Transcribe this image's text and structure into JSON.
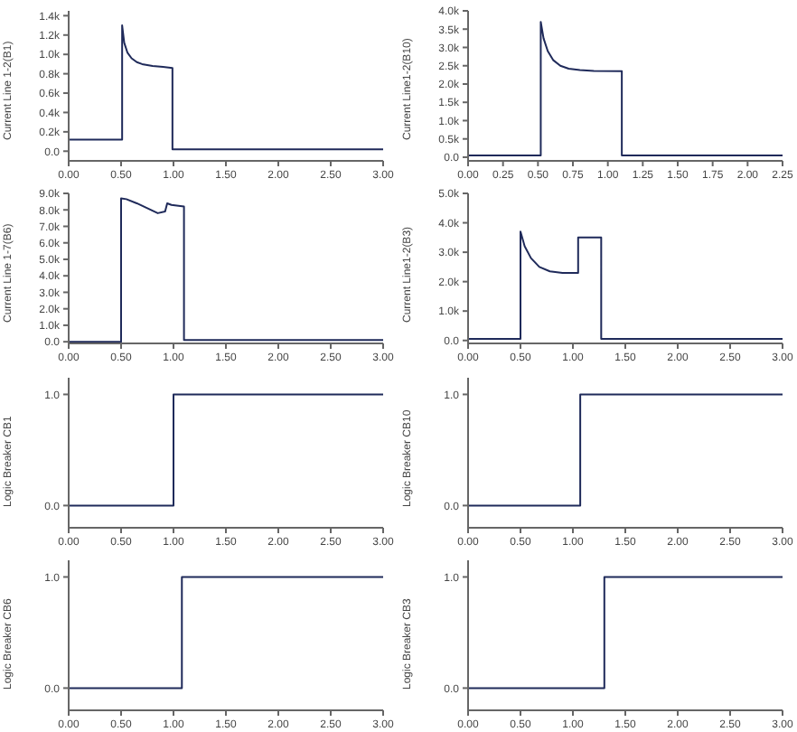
{
  "chart_data": [
    {
      "type": "line",
      "ylabel": "Current Line 1-2(B1)",
      "xlim": [
        0,
        3
      ],
      "xticks": [
        {
          "value": 0,
          "label": "0.00"
        },
        {
          "value": 0.5,
          "label": "0.50"
        },
        {
          "value": 1,
          "label": "1.00"
        },
        {
          "value": 1.5,
          "label": "1.50"
        },
        {
          "value": 2,
          "label": "2.00"
        },
        {
          "value": 2.5,
          "label": "2.50"
        },
        {
          "value": 3,
          "label": "3.00"
        }
      ],
      "ylim": [
        -0.1,
        1.45
      ],
      "yticks": [
        {
          "value": 0,
          "label": "0.0"
        },
        {
          "value": 0.2,
          "label": "0.2k"
        },
        {
          "value": 0.4,
          "label": "0.4k"
        },
        {
          "value": 0.6,
          "label": "0.6k"
        },
        {
          "value": 0.8,
          "label": "0.8k"
        },
        {
          "value": 1,
          "label": "1.0k"
        },
        {
          "value": 1.2,
          "label": "1.2k"
        },
        {
          "value": 1.4,
          "label": "1.4k"
        }
      ],
      "series": [
        {
          "color": "#1f2a5a",
          "x": [
            0,
            0.51,
            0.51,
            0.53,
            0.56,
            0.6,
            0.65,
            0.7,
            0.8,
            0.9,
            0.99,
            0.99,
            3
          ],
          "values": [
            0.12,
            0.12,
            1.3,
            1.12,
            1.02,
            0.96,
            0.92,
            0.9,
            0.88,
            0.87,
            0.86,
            0.02,
            0.02
          ]
        }
      ]
    },
    {
      "type": "line",
      "ylabel": "Current Line1-2(B10)",
      "xlim": [
        0,
        2.25
      ],
      "xticks": [
        {
          "value": 0,
          "label": "0.00"
        },
        {
          "value": 0.25,
          "label": "0.25"
        },
        {
          "value": 0.5,
          "label": "0.50"
        },
        {
          "value": 0.75,
          "label": "0.75"
        },
        {
          "value": 1,
          "label": "1.00"
        },
        {
          "value": 1.25,
          "label": "1.25"
        },
        {
          "value": 1.5,
          "label": "1.50"
        },
        {
          "value": 1.75,
          "label": "1.75"
        },
        {
          "value": 2,
          "label": "2.00"
        },
        {
          "value": 2.25,
          "label": "2.25"
        }
      ],
      "ylim": [
        -0.1,
        4
      ],
      "yticks": [
        {
          "value": 0,
          "label": "0.0"
        },
        {
          "value": 0.5,
          "label": "0.5k"
        },
        {
          "value": 1,
          "label": "1.0k"
        },
        {
          "value": 1.5,
          "label": "1.5k"
        },
        {
          "value": 2,
          "label": "2.0k"
        },
        {
          "value": 2.5,
          "label": "2.5k"
        },
        {
          "value": 3,
          "label": "3.0k"
        },
        {
          "value": 3.5,
          "label": "3.5k"
        },
        {
          "value": 4,
          "label": "4.0k"
        }
      ],
      "series": [
        {
          "color": "#1f2a5a",
          "x": [
            0,
            0.52,
            0.52,
            0.54,
            0.57,
            0.61,
            0.66,
            0.72,
            0.8,
            0.9,
            1.1,
            1.1,
            2.25
          ],
          "values": [
            0.05,
            0.05,
            3.7,
            3.25,
            2.9,
            2.65,
            2.5,
            2.42,
            2.38,
            2.36,
            2.35,
            0.05,
            0.05
          ]
        }
      ]
    },
    {
      "type": "line",
      "ylabel": "Current Line 1-7(B6)",
      "xlim": [
        0,
        3
      ],
      "xticks": [
        {
          "value": 0,
          "label": "0.00"
        },
        {
          "value": 0.5,
          "label": "0.50"
        },
        {
          "value": 1,
          "label": "1.00"
        },
        {
          "value": 1.5,
          "label": "1.50"
        },
        {
          "value": 2,
          "label": "2.00"
        },
        {
          "value": 2.5,
          "label": "2.50"
        },
        {
          "value": 3,
          "label": "3.00"
        }
      ],
      "ylim": [
        -0.1,
        9
      ],
      "yticks": [
        {
          "value": 0,
          "label": "0.0"
        },
        {
          "value": 1,
          "label": "1.0k"
        },
        {
          "value": 2,
          "label": "2.0k"
        },
        {
          "value": 3,
          "label": "3.0k"
        },
        {
          "value": 4,
          "label": "4.0k"
        },
        {
          "value": 5,
          "label": "5.0k"
        },
        {
          "value": 6,
          "label": "6.0k"
        },
        {
          "value": 7,
          "label": "7.0k"
        },
        {
          "value": 8,
          "label": "8.0k"
        },
        {
          "value": 9,
          "label": "9.0k"
        }
      ],
      "series": [
        {
          "color": "#1f2a5a",
          "x": [
            0,
            0.5,
            0.5,
            0.55,
            0.65,
            0.75,
            0.85,
            0.92,
            0.94,
            0.98,
            1.1,
            1.1,
            3
          ],
          "values": [
            0,
            0,
            8.7,
            8.65,
            8.4,
            8.1,
            7.8,
            7.9,
            8.4,
            8.3,
            8.2,
            0.1,
            0.1
          ]
        }
      ]
    },
    {
      "type": "line",
      "ylabel": "Current Line1-2(B3)",
      "xlim": [
        0,
        3
      ],
      "xticks": [
        {
          "value": 0,
          "label": "0.00"
        },
        {
          "value": 0.5,
          "label": "0.50"
        },
        {
          "value": 1,
          "label": "1.00"
        },
        {
          "value": 1.5,
          "label": "1.50"
        },
        {
          "value": 2,
          "label": "2.00"
        },
        {
          "value": 2.5,
          "label": "2.50"
        },
        {
          "value": 3,
          "label": "3.00"
        }
      ],
      "ylim": [
        -0.1,
        5
      ],
      "yticks": [
        {
          "value": 0,
          "label": "0.0"
        },
        {
          "value": 1,
          "label": "1.0k"
        },
        {
          "value": 2,
          "label": "2.0k"
        },
        {
          "value": 3,
          "label": "3.0k"
        },
        {
          "value": 4,
          "label": "4.0k"
        },
        {
          "value": 5,
          "label": "5.0k"
        }
      ],
      "series": [
        {
          "color": "#1f2a5a",
          "x": [
            0,
            0.5,
            0.5,
            0.54,
            0.6,
            0.68,
            0.78,
            0.9,
            1.05,
            1.05,
            1.27,
            1.27,
            3
          ],
          "values": [
            0.05,
            0.05,
            3.7,
            3.2,
            2.8,
            2.5,
            2.35,
            2.3,
            2.3,
            3.5,
            3.5,
            0.05,
            0.05
          ]
        }
      ]
    },
    {
      "type": "step",
      "ylabel": "Logic Breaker CB1",
      "xlim": [
        0,
        3
      ],
      "xticks": [
        {
          "value": 0,
          "label": "0.00"
        },
        {
          "value": 0.5,
          "label": "0.50"
        },
        {
          "value": 1,
          "label": "1.00"
        },
        {
          "value": 1.5,
          "label": "1.50"
        },
        {
          "value": 2,
          "label": "2.00"
        },
        {
          "value": 2.5,
          "label": "2.50"
        },
        {
          "value": 3,
          "label": "3.00"
        }
      ],
      "ylim": [
        -0.2,
        1.15
      ],
      "yticks": [
        {
          "value": 0,
          "label": "0.0"
        },
        {
          "value": 1,
          "label": "1.0"
        }
      ],
      "series": [
        {
          "color": "#1f2a5a",
          "x": [
            0,
            1,
            3
          ],
          "values": [
            0,
            1,
            1
          ]
        }
      ]
    },
    {
      "type": "step",
      "ylabel": "Logic Breaker CB10",
      "xlim": [
        0,
        3
      ],
      "xticks": [
        {
          "value": 0,
          "label": "0.00"
        },
        {
          "value": 0.5,
          "label": "0.50"
        },
        {
          "value": 1,
          "label": "1.00"
        },
        {
          "value": 1.5,
          "label": "1.50"
        },
        {
          "value": 2,
          "label": "2.00"
        },
        {
          "value": 2.5,
          "label": "2.50"
        },
        {
          "value": 3,
          "label": "3.00"
        }
      ],
      "ylim": [
        -0.2,
        1.15
      ],
      "yticks": [
        {
          "value": 0,
          "label": "0.0"
        },
        {
          "value": 1,
          "label": "1.0"
        }
      ],
      "series": [
        {
          "color": "#1f2a5a",
          "x": [
            0,
            1.07,
            3
          ],
          "values": [
            0,
            1,
            1
          ]
        }
      ]
    },
    {
      "type": "step",
      "ylabel": "Logic Breaker CB6",
      "xlim": [
        0,
        3
      ],
      "xticks": [
        {
          "value": 0,
          "label": "0.00"
        },
        {
          "value": 0.5,
          "label": "0.50"
        },
        {
          "value": 1,
          "label": "1.00"
        },
        {
          "value": 1.5,
          "label": "1.50"
        },
        {
          "value": 2,
          "label": "2.00"
        },
        {
          "value": 2.5,
          "label": "2.50"
        },
        {
          "value": 3,
          "label": "3.00"
        }
      ],
      "ylim": [
        -0.2,
        1.15
      ],
      "yticks": [
        {
          "value": 0,
          "label": "0.0"
        },
        {
          "value": 1,
          "label": "1.0"
        }
      ],
      "series": [
        {
          "color": "#1f2a5a",
          "x": [
            0,
            1.08,
            3
          ],
          "values": [
            0,
            1,
            1
          ]
        }
      ]
    },
    {
      "type": "step",
      "ylabel": "Logic Breaker CB3",
      "xlim": [
        0,
        3
      ],
      "xticks": [
        {
          "value": 0,
          "label": "0.00"
        },
        {
          "value": 0.5,
          "label": "0.50"
        },
        {
          "value": 1,
          "label": "1.00"
        },
        {
          "value": 1.5,
          "label": "1.50"
        },
        {
          "value": 2,
          "label": "2.00"
        },
        {
          "value": 2.5,
          "label": "2.50"
        },
        {
          "value": 3,
          "label": "3.00"
        }
      ],
      "ylim": [
        -0.2,
        1.15
      ],
      "yticks": [
        {
          "value": 0,
          "label": "0.0"
        },
        {
          "value": 1,
          "label": "1.0"
        }
      ],
      "series": [
        {
          "color": "#1f2a5a",
          "x": [
            0,
            1.3,
            3
          ],
          "values": [
            0,
            1,
            1
          ]
        }
      ]
    }
  ]
}
